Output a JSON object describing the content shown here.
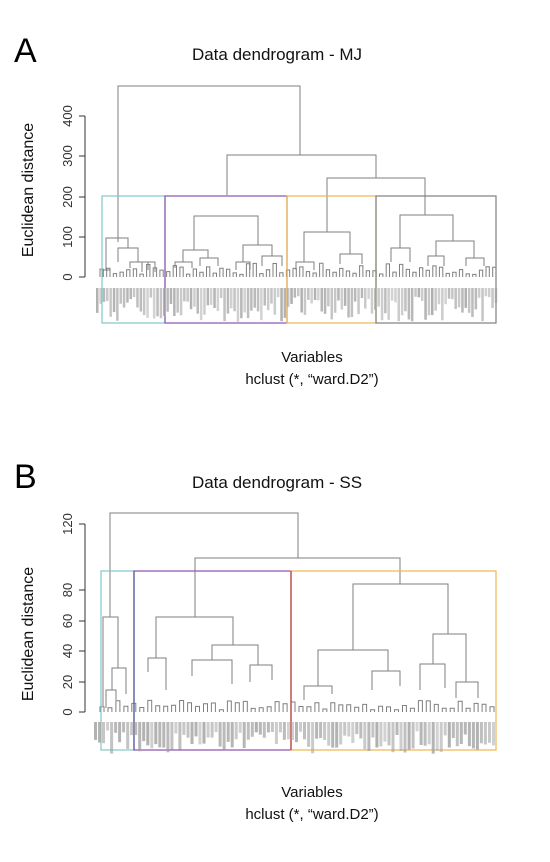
{
  "panels": [
    {
      "letter": "A",
      "title": "Data dendrogram - MJ",
      "ylabel": "Euclidean distance",
      "xlabel": "Variables",
      "subtitle": "hclust (*, “ward.D2”)"
    },
    {
      "letter": "B",
      "title": "Data dendrogram - SS",
      "ylabel": "Euclidean distance",
      "xlabel": "Variables",
      "subtitle": "hclust (*, “ward.D2”)"
    }
  ],
  "colors": {
    "tree": "#7f7f7f",
    "cluster_borders": [
      "#7ec8c8",
      "#8c4fb0",
      "#f0b44c",
      "#5f5f9f"
    ]
  },
  "chart_data": [
    {
      "type": "dendrogram",
      "title": "Data dendrogram - MJ",
      "xlabel": "Variables",
      "ylabel": "Euclidean distance",
      "ylim": [
        0,
        470
      ],
      "yticks": [
        0,
        100,
        200,
        300,
        400
      ],
      "leaf_count": 120,
      "cut_height": 200,
      "cluster_box_colors": [
        "#7ec8c8",
        "#8c4fb0",
        "#f0b44c",
        "#5f5f9f"
      ],
      "merges": [
        {
          "height": 470,
          "children": [
            "left-group",
            "right-group"
          ]
        },
        {
          "height": 300,
          "children": [
            "mid-group",
            "right-subgroup"
          ]
        },
        {
          "height": 245,
          "children": [
            "cluster-3",
            "cluster-4"
          ]
        },
        {
          "height": 200,
          "children": [
            "cluster-1",
            "cluster-2"
          ]
        },
        {
          "height": 155,
          "children": [
            "cluster-4a",
            "cluster-4b"
          ]
        },
        {
          "height": 150,
          "children": [
            "cluster-2a",
            "cluster-2b"
          ]
        },
        {
          "height": 110,
          "children": [
            "cluster-3a",
            "cluster-3b"
          ]
        },
        {
          "height": 95,
          "children": [
            "cluster-1a",
            "cluster-1b"
          ]
        }
      ]
    },
    {
      "type": "dendrogram",
      "title": "Data dendrogram - SS",
      "xlabel": "Variables",
      "ylabel": "Euclidean distance",
      "ylim": [
        0,
        130
      ],
      "yticks": [
        0,
        20,
        40,
        60,
        80,
        120
      ],
      "leaf_count": 100,
      "cut_height": 91,
      "cluster_box_colors": [
        "#7ec8c8",
        "#8c4fb0",
        "#f0b44c",
        "#5f5f9f"
      ],
      "merges": [
        {
          "height": 128,
          "children": [
            "cluster-1",
            "rest"
          ]
        },
        {
          "height": 100,
          "children": [
            "cluster-2",
            "cluster-3"
          ]
        },
        {
          "height": 82,
          "children": [
            "cluster-3a",
            "cluster-3b"
          ]
        },
        {
          "height": 62,
          "children": [
            "cluster-1a",
            "cluster-1b"
          ]
        },
        {
          "height": 62,
          "children": [
            "cluster-2a",
            "cluster-2b"
          ]
        },
        {
          "height": 51,
          "children": [
            "cluster-3b1",
            "cluster-3b2"
          ]
        },
        {
          "height": 44,
          "children": [
            "cluster-2b1",
            "cluster-2b2"
          ]
        },
        {
          "height": 41,
          "children": [
            "cluster-3a1",
            "cluster-3a2"
          ]
        }
      ]
    }
  ]
}
